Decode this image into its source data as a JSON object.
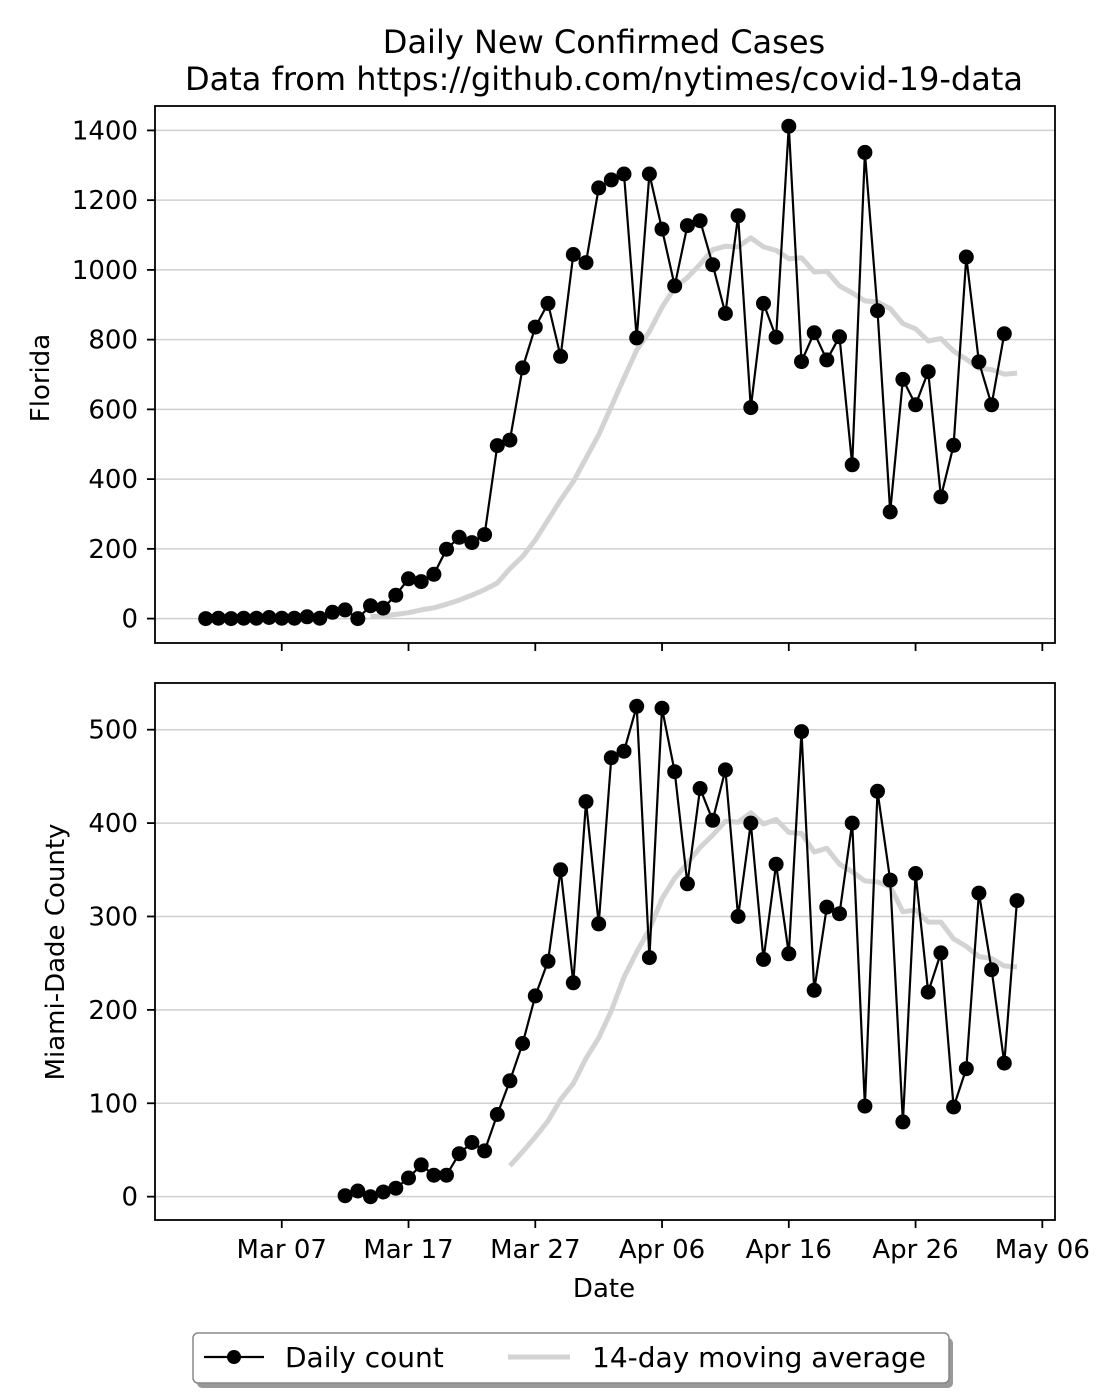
{
  "chart_data": {
    "type": "line",
    "title": "Daily New Confirmed Cases",
    "subtitle": "Data from https://github.com/nytimes/covid-19-data",
    "xlabel": "Date",
    "x_range": [
      "2020-02-26",
      "2020-05-07"
    ],
    "x_tick_labels": [
      {
        "date": "2020-03-07",
        "label": "Mar 07"
      },
      {
        "date": "2020-03-17",
        "label": "Mar 17"
      },
      {
        "date": "2020-03-27",
        "label": "Mar 27"
      },
      {
        "date": "2020-04-06",
        "label": "Apr 06"
      },
      {
        "date": "2020-04-16",
        "label": "Apr 16"
      },
      {
        "date": "2020-04-26",
        "label": "Apr 26"
      },
      {
        "date": "2020-05-06",
        "label": "May 06"
      }
    ],
    "grid": "horizontal",
    "legend": {
      "placement": "bottom-center",
      "entries": [
        {
          "label": "Daily count",
          "color": "#000000"
        },
        {
          "label": "14-day moving average",
          "color": "#d3d3d3"
        }
      ]
    },
    "panels": [
      {
        "ylabel": "Florida",
        "ylim": [
          -70,
          1470
        ],
        "yticks": [
          0,
          200,
          400,
          600,
          800,
          1000,
          1200,
          1400
        ],
        "daily_start": "2020-03-01",
        "daily": [
          0,
          1,
          0,
          1,
          1,
          3,
          1,
          1,
          5,
          1,
          18,
          25,
          0,
          37,
          30,
          67,
          114,
          106,
          127,
          199,
          233,
          218,
          241,
          496,
          512,
          719,
          836,
          904,
          752,
          1044,
          1021,
          1235,
          1258,
          1275,
          805,
          1275,
          1117,
          954,
          1127,
          1141,
          1015,
          875,
          1155,
          605,
          904,
          807,
          1412,
          737,
          820,
          742,
          808,
          441,
          1337,
          883,
          306,
          686,
          613,
          708,
          349,
          497,
          1037,
          736,
          613,
          817
        ],
        "avg_start": "2020-03-14",
        "avg": [
          5,
          7,
          12,
          17,
          25,
          31,
          41,
          53,
          67,
          83,
          102,
          143,
          178,
          225,
          283,
          340,
          393,
          460,
          527,
          608,
          690,
          770,
          823,
          893,
          949,
          978,
          1016,
          1058,
          1068,
          1066,
          1092,
          1066,
          1056,
          1032,
          1035,
          994,
          996,
          954,
          934,
          911,
          908,
          889,
          846,
          831,
          796,
          803,
          767,
          744,
          718,
          714,
          701,
          704
        ]
      },
      {
        "ylabel": "Miami-Dade County",
        "ylim": [
          -25,
          550
        ],
        "yticks": [
          0,
          100,
          200,
          300,
          400,
          500
        ],
        "daily_start": "2020-03-12",
        "daily": [
          1,
          6,
          0,
          5,
          9,
          20,
          34,
          23,
          23,
          46,
          58,
          49,
          88,
          124,
          164,
          215,
          252,
          350,
          229,
          423,
          292,
          470,
          477,
          525,
          256,
          523,
          455,
          335,
          437,
          403,
          457,
          300,
          400,
          254,
          356,
          260,
          498,
          221,
          310,
          303,
          400,
          97,
          434,
          339,
          80,
          346,
          219,
          261,
          96,
          137,
          325,
          243,
          143,
          317
        ],
        "avg_start": "2020-03-25",
        "avg": [
          33,
          48,
          64,
          81,
          104,
          121,
          148,
          170,
          199,
          235,
          262,
          286,
          319,
          341,
          357,
          374,
          387,
          402,
          401,
          411,
          399,
          404,
          390,
          389,
          369,
          373,
          356,
          348,
          338,
          337,
          332,
          305,
          307,
          294,
          294,
          276,
          268,
          257,
          255,
          247,
          246
        ]
      }
    ]
  }
}
